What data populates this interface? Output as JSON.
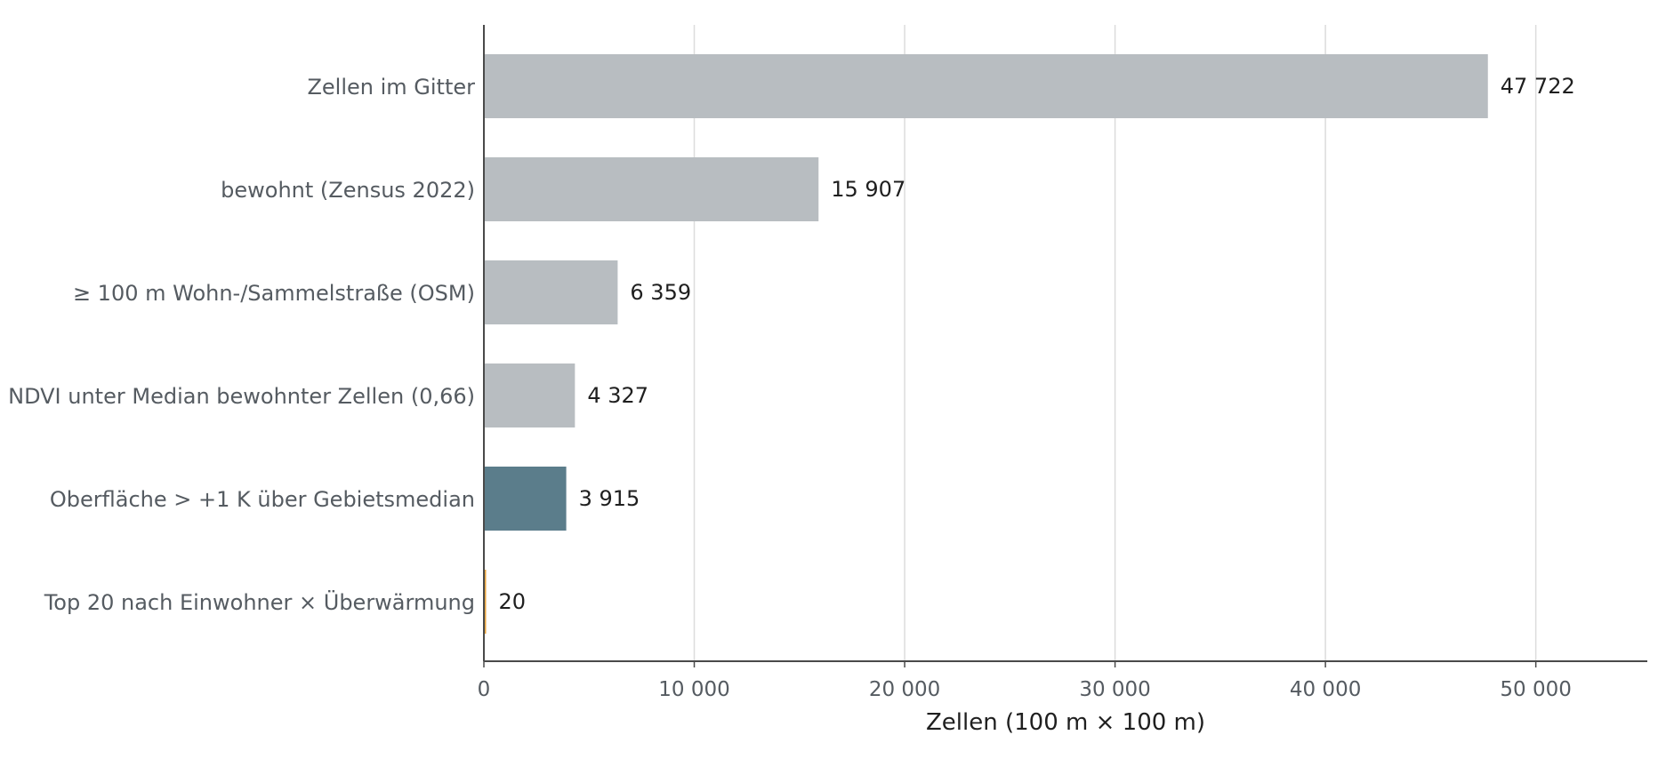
{
  "chart_data": {
    "type": "bar",
    "orientation": "horizontal",
    "title": "",
    "categories": [
      "Zellen im Gitter",
      "bewohnt (Zensus 2022)",
      "≥ 100 m Wohn-/Sammelstraße (OSM)",
      "NDVI unter Median bewohnter Zellen (0,66)",
      "Oberfläche > +1 K über Gebietsmedian",
      "Top 20 nach Einwohner × Überwärmung"
    ],
    "values": [
      47722,
      15907,
      6359,
      4327,
      3915,
      20
    ],
    "value_labels": [
      "47 722",
      "15 907",
      "6 359",
      "4 327",
      "3 915",
      "20"
    ],
    "bar_colors": [
      "#b8bdc1",
      "#b8bdc1",
      "#b8bdc1",
      "#b8bdc1",
      "#5b7d8b",
      "#e8a33b"
    ],
    "xlabel": "Zellen (100 m × 100 m)",
    "ylabel": "",
    "xlim": [
      0,
      55300
    ],
    "xticks": [
      0,
      10000,
      20000,
      30000,
      40000,
      50000
    ],
    "xtick_labels": [
      "0",
      "10 000",
      "20 000",
      "30 000",
      "40 000",
      "50 000"
    ],
    "grid": "vertical",
    "legend": "none"
  }
}
